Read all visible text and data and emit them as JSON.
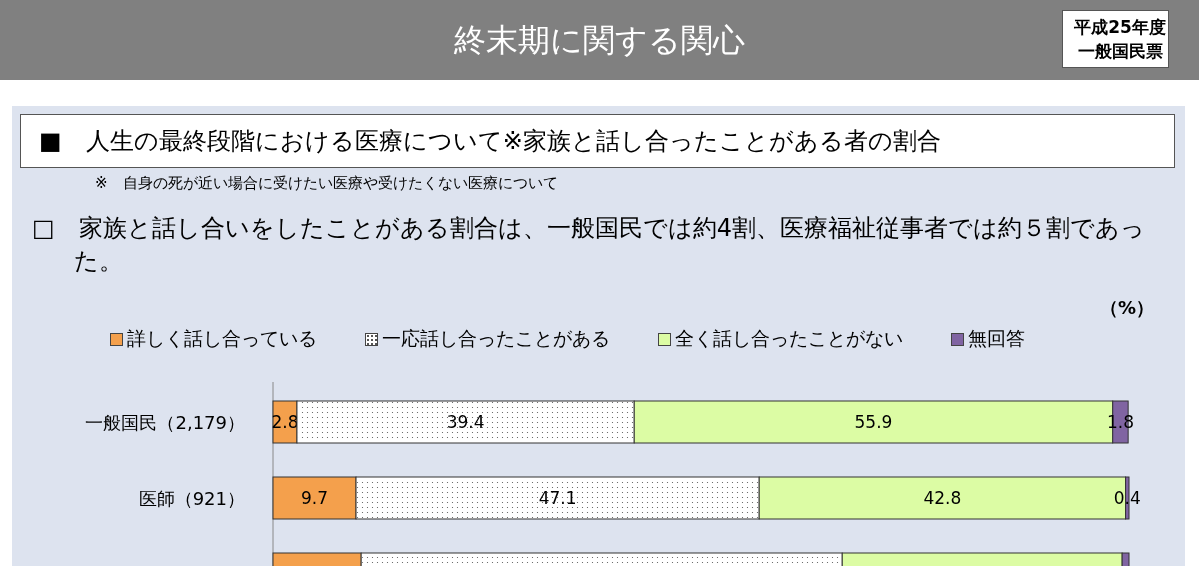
{
  "chart_data": {
    "type": "bar",
    "orientation": "horizontal",
    "stacked": true,
    "title": "終末期に関する関心",
    "subtitle": "■　人生の最終段階における医療について※家族と話し合ったことがある者の割合",
    "annotations": [
      "平成25年度一般国民票",
      "※　自身の死が近い場合に受けたい医療や受けたくない医療について",
      "□　家族と話し合いをしたことがある割合は、一般国民では約4割、医療福祉従事者では約５割であった。",
      "（%）"
    ],
    "categories": [
      "一般国民（2,179）",
      "医師（921）",
      null
    ],
    "xlim": [
      0,
      100
    ],
    "legend": "top",
    "series": [
      {
        "name": "詳しく話し合っている",
        "color": "#f4a04c",
        "values": [
          2.8,
          9.7,
          10.3
        ],
        "value_labels": [
          "2.8",
          "9.7",
          null
        ]
      },
      {
        "name": "一応話し合ったことがある",
        "color": "#ffffff",
        "values": [
          39.4,
          47.1,
          56.2
        ],
        "value_labels": [
          "39.4",
          "47.1",
          null
        ]
      },
      {
        "name": "全く話し合ったことがない",
        "color": "#dcfca4",
        "values": [
          55.9,
          42.8,
          32.7
        ],
        "value_labels": [
          "55.9",
          "42.8",
          null
        ]
      },
      {
        "name": "無回答",
        "color": "#8064a2",
        "values": [
          1.8,
          0.4,
          0.8
        ],
        "value_labels": [
          "1.8",
          "0.4",
          null
        ]
      }
    ]
  }
}
